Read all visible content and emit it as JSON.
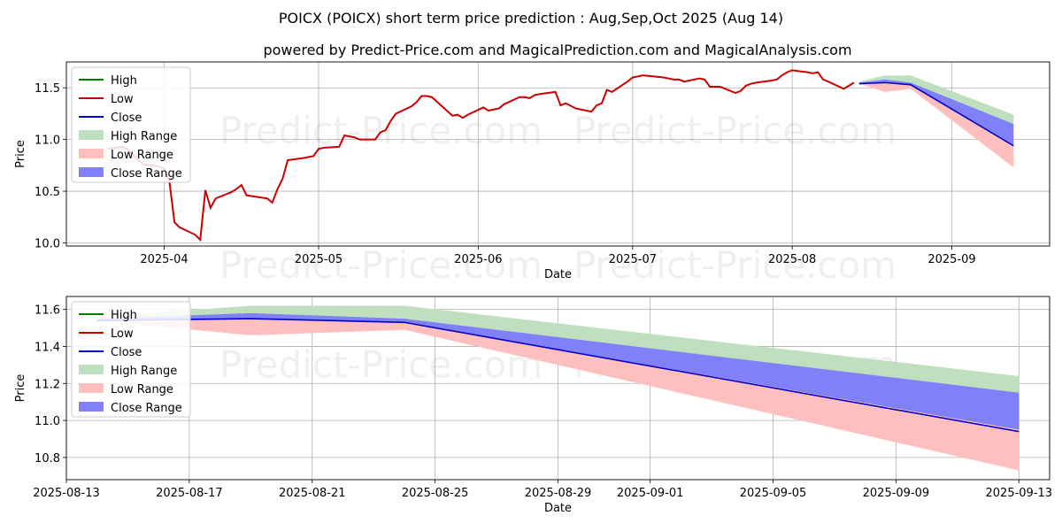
{
  "title_line1": "POICX (POICX) short term price prediction : Aug,Sep,Oct 2025 (Aug 14)",
  "title_line2": "powered by Predict-Price.com and MagicalPrediction.com and MagicalAnalysis.com",
  "watermark": "Predict-Price.com",
  "colors": {
    "high": "#008000",
    "low": "#cc0000",
    "close": "#0000cc",
    "high_range": "#bfe0bf",
    "low_range": "#ffbfbf",
    "close_range": "#8080f8"
  },
  "chart_data": [
    {
      "type": "line",
      "xlabel": "Date",
      "ylabel": "Price",
      "ylim": [
        9.97,
        11.75
      ],
      "xlim": [
        "2025-03-13",
        "2025-09-20"
      ],
      "x_ticks": [
        "2025-04",
        "2025-05",
        "2025-06",
        "2025-07",
        "2025-08",
        "2025-09"
      ],
      "x_tick_dates": [
        "2025-04-01",
        "2025-05-01",
        "2025-06-01",
        "2025-07-01",
        "2025-08-01",
        "2025-09-01"
      ],
      "y_ticks": [
        "10.0",
        "10.5",
        "11.0",
        "11.5"
      ],
      "y_tick_values": [
        10.0,
        10.5,
        11.0,
        11.5
      ],
      "grid": true,
      "legend": [
        "High",
        "Low",
        "Close",
        "High Range",
        "Low Range",
        "Close Range"
      ],
      "legend_position": "top-left",
      "history": {
        "dates": [
          "2025-03-21",
          "2025-03-24",
          "2025-03-25",
          "2025-03-26",
          "2025-03-27",
          "2025-03-28",
          "2025-03-31",
          "2025-04-01",
          "2025-04-02",
          "2025-04-03",
          "2025-04-04",
          "2025-04-07",
          "2025-04-08",
          "2025-04-09",
          "2025-04-10",
          "2025-04-11",
          "2025-04-14",
          "2025-04-15",
          "2025-04-16",
          "2025-04-17",
          "2025-04-21",
          "2025-04-22",
          "2025-04-23",
          "2025-04-24",
          "2025-04-25",
          "2025-04-28",
          "2025-04-29",
          "2025-04-30",
          "2025-05-01",
          "2025-05-02",
          "2025-05-05",
          "2025-05-06",
          "2025-05-07",
          "2025-05-08",
          "2025-05-09",
          "2025-05-12",
          "2025-05-13",
          "2025-05-14",
          "2025-05-15",
          "2025-05-16",
          "2025-05-19",
          "2025-05-20",
          "2025-05-21",
          "2025-05-22",
          "2025-05-23",
          "2025-05-27",
          "2025-05-28",
          "2025-05-29",
          "2025-05-30",
          "2025-06-02",
          "2025-06-03",
          "2025-06-04",
          "2025-06-05",
          "2025-06-06",
          "2025-06-09",
          "2025-06-10",
          "2025-06-11",
          "2025-06-12",
          "2025-06-13",
          "2025-06-16",
          "2025-06-17",
          "2025-06-18",
          "2025-06-20",
          "2025-06-23",
          "2025-06-24",
          "2025-06-25",
          "2025-06-26",
          "2025-06-27",
          "2025-06-30",
          "2025-07-01",
          "2025-07-02",
          "2025-07-03",
          "2025-07-07",
          "2025-07-08",
          "2025-07-09",
          "2025-07-10",
          "2025-07-11",
          "2025-07-14",
          "2025-07-15",
          "2025-07-16",
          "2025-07-17",
          "2025-07-18",
          "2025-07-21",
          "2025-07-22",
          "2025-07-23",
          "2025-07-24",
          "2025-07-25",
          "2025-07-28",
          "2025-07-29",
          "2025-07-30",
          "2025-07-31",
          "2025-08-01",
          "2025-08-04",
          "2025-08-05",
          "2025-08-06",
          "2025-08-07",
          "2025-08-08",
          "2025-08-11",
          "2025-08-12",
          "2025-08-13"
        ],
        "low": [
          10.91,
          10.93,
          10.9,
          10.85,
          10.8,
          10.76,
          10.74,
          10.72,
          10.6,
          10.2,
          10.15,
          10.08,
          10.03,
          10.51,
          10.34,
          10.43,
          10.49,
          10.52,
          10.56,
          10.46,
          10.43,
          10.39,
          10.52,
          10.62,
          10.8,
          10.82,
          10.83,
          10.84,
          10.91,
          10.92,
          10.93,
          11.04,
          11.03,
          11.02,
          11.0,
          11.0,
          11.07,
          11.09,
          11.18,
          11.25,
          11.32,
          11.36,
          11.42,
          11.42,
          11.41,
          11.23,
          11.24,
          11.21,
          11.24,
          11.31,
          11.28,
          11.29,
          11.3,
          11.34,
          11.41,
          11.41,
          11.4,
          11.43,
          11.44,
          11.46,
          11.33,
          11.35,
          11.3,
          11.27,
          11.33,
          11.35,
          11.48,
          11.46,
          11.56,
          11.6,
          11.61,
          11.62,
          11.6,
          11.59,
          11.58,
          11.58,
          11.56,
          11.59,
          11.58,
          11.51,
          11.51,
          11.51,
          11.45,
          11.47,
          11.52,
          11.54,
          11.55,
          11.57,
          11.58,
          11.62,
          11.65,
          11.67,
          11.65,
          11.64,
          11.65,
          11.58,
          11.56,
          11.49,
          11.52,
          11.55
        ]
      },
      "forecast": {
        "dates": [
          "2025-08-14",
          "2025-08-19",
          "2025-08-24",
          "2025-09-13"
        ],
        "high_upper": [
          11.56,
          11.62,
          11.62,
          11.24
        ],
        "high_lower": [
          11.54,
          11.56,
          11.54,
          11.14
        ],
        "low_upper": [
          11.55,
          11.55,
          11.54,
          10.95
        ],
        "low_lower": [
          11.54,
          11.46,
          11.49,
          10.73
        ],
        "close_upper": [
          11.55,
          11.58,
          11.55,
          11.15
        ],
        "close_lower": [
          11.54,
          11.55,
          11.53,
          10.95
        ],
        "close": [
          11.54,
          11.55,
          11.53,
          10.94
        ]
      }
    },
    {
      "type": "line",
      "xlabel": "Date",
      "ylabel": "Price",
      "ylim": [
        10.68,
        11.67
      ],
      "xlim": [
        "2025-08-13",
        "2025-09-14"
      ],
      "x_ticks": [
        "2025-08-13",
        "2025-08-17",
        "2025-08-21",
        "2025-08-25",
        "2025-08-29",
        "2025-09-01",
        "2025-09-05",
        "2025-09-09",
        "2025-09-13"
      ],
      "x_tick_dates": [
        "2025-08-13",
        "2025-08-17",
        "2025-08-21",
        "2025-08-25",
        "2025-08-29",
        "2025-09-01",
        "2025-09-05",
        "2025-09-09",
        "2025-09-13"
      ],
      "y_ticks": [
        "10.8",
        "11.0",
        "11.2",
        "11.4",
        "11.6"
      ],
      "y_tick_values": [
        10.8,
        11.0,
        11.2,
        11.4,
        11.6
      ],
      "grid": true,
      "legend": [
        "High",
        "Low",
        "Close",
        "High Range",
        "Low Range",
        "Close Range"
      ],
      "legend_position": "top-left"
    }
  ]
}
